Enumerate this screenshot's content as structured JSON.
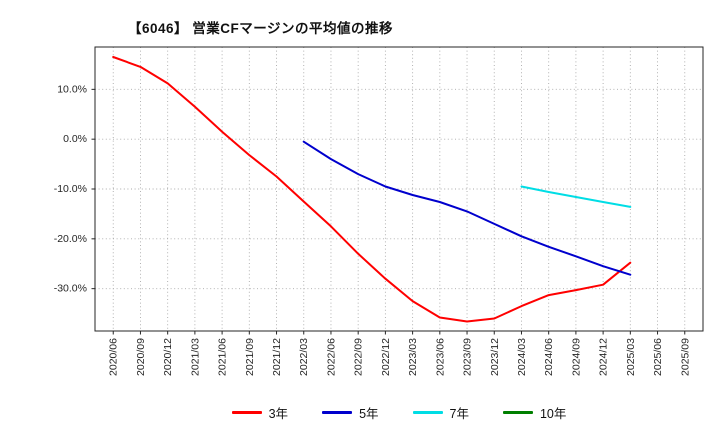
{
  "chart_data": {
    "type": "line",
    "title": "【6046】 営業CFマージンの平均値の推移",
    "xlabel": "",
    "ylabel": "",
    "x_labels": [
      "2020/06",
      "2020/09",
      "2020/12",
      "2021/03",
      "2021/06",
      "2021/09",
      "2021/12",
      "2022/03",
      "2022/06",
      "2022/09",
      "2022/12",
      "2023/03",
      "2023/06",
      "2023/09",
      "2023/12",
      "2024/03",
      "2024/06",
      "2024/09",
      "2024/12",
      "2025/03",
      "2025/06",
      "2025/09"
    ],
    "y_ticks": [
      10,
      0,
      -10,
      -20,
      -30
    ],
    "y_tick_suffix": "%",
    "ylim": [
      -38.5,
      18.5
    ],
    "grid": true,
    "legend_position": "bottom",
    "series": [
      {
        "name": "3年",
        "color": "#ff0000",
        "values": [
          16.5,
          14.5,
          11.2,
          6.5,
          1.5,
          -3.2,
          -7.5,
          -12.5,
          -17.5,
          -23.0,
          -28.0,
          -32.5,
          -35.8,
          -36.6,
          -36.0,
          -33.5,
          -31.3,
          -30.3,
          -29.2,
          -24.8,
          null,
          null
        ]
      },
      {
        "name": "5年",
        "color": "#0000cd",
        "values": [
          null,
          null,
          null,
          null,
          null,
          null,
          null,
          -0.5,
          -4.0,
          -7.0,
          -9.5,
          -11.2,
          -12.6,
          -14.5,
          -17.0,
          -19.5,
          -21.6,
          -23.5,
          -25.5,
          -27.2,
          null,
          null
        ]
      },
      {
        "name": "7年",
        "color": "#00dde5",
        "values": [
          null,
          null,
          null,
          null,
          null,
          null,
          null,
          null,
          null,
          null,
          null,
          null,
          null,
          null,
          null,
          -9.5,
          -10.6,
          -11.6,
          -12.6,
          -13.6,
          null,
          null
        ]
      },
      {
        "name": "10年",
        "color": "#007f00",
        "values": []
      }
    ]
  }
}
